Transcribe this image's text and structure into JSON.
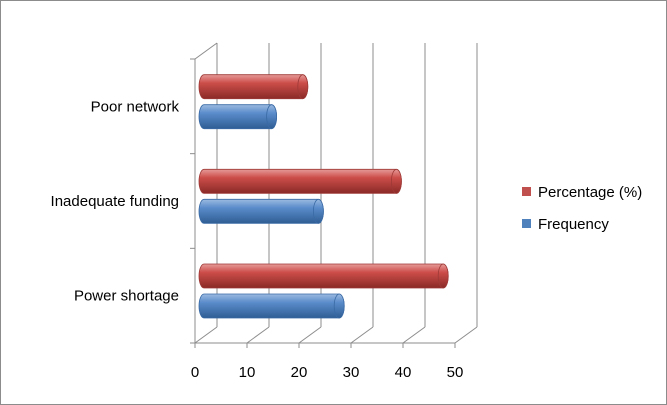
{
  "chart_data": {
    "type": "bar",
    "orientation": "horizontal",
    "style": "3d-cylinder",
    "categories": [
      "Power shortage",
      "Inadequate funding",
      "Poor network"
    ],
    "series": [
      {
        "name": "Frequency",
        "values": [
          26,
          22,
          13
        ],
        "color": "#4f81bd"
      },
      {
        "name": "Percentage (%)",
        "values": [
          46,
          37,
          19
        ],
        "color": "#c0504d"
      }
    ],
    "xlim": [
      0,
      50
    ],
    "xticks": [
      "0",
      "10",
      "20",
      "30",
      "40",
      "50"
    ],
    "grid": true,
    "legend_position": "right"
  }
}
